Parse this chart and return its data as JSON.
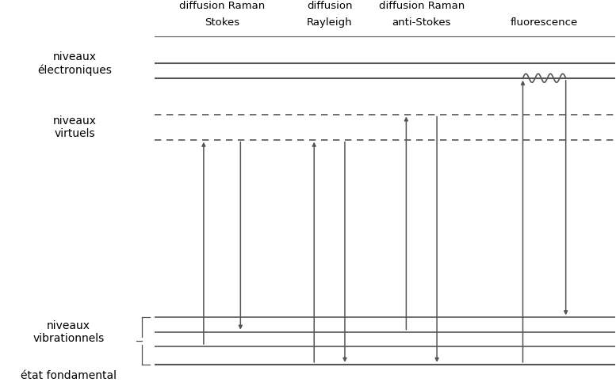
{
  "bg_color": "#ffffff",
  "line_color": "#555555",
  "text_color": "#000000",
  "figsize": [
    7.77,
    4.83
  ],
  "dpi": 100,
  "xlim": [
    0,
    10
  ],
  "ylim": [
    0,
    10
  ],
  "diagram_x_start": 2.5,
  "diagram_x_end": 10.0,
  "elec_level_1": 8.2,
  "elec_level_2": 8.6,
  "virt_level_1": 7.2,
  "virt_level_2": 6.5,
  "vib_level_1": 1.6,
  "vib_level_2": 1.2,
  "vib_level_3": 0.8,
  "ground_level": 0.3,
  "col_stokes_in": 3.3,
  "col_stokes_out": 3.9,
  "col_rayleigh_in": 5.1,
  "col_rayleigh_out": 5.6,
  "col_antistokes_in": 6.6,
  "col_antistokes_out": 7.1,
  "col_fluor_in": 8.5,
  "col_fluor_out": 9.2,
  "top_line_y": 9.35,
  "label_fontsz": 10,
  "top_fontsz": 9.5
}
